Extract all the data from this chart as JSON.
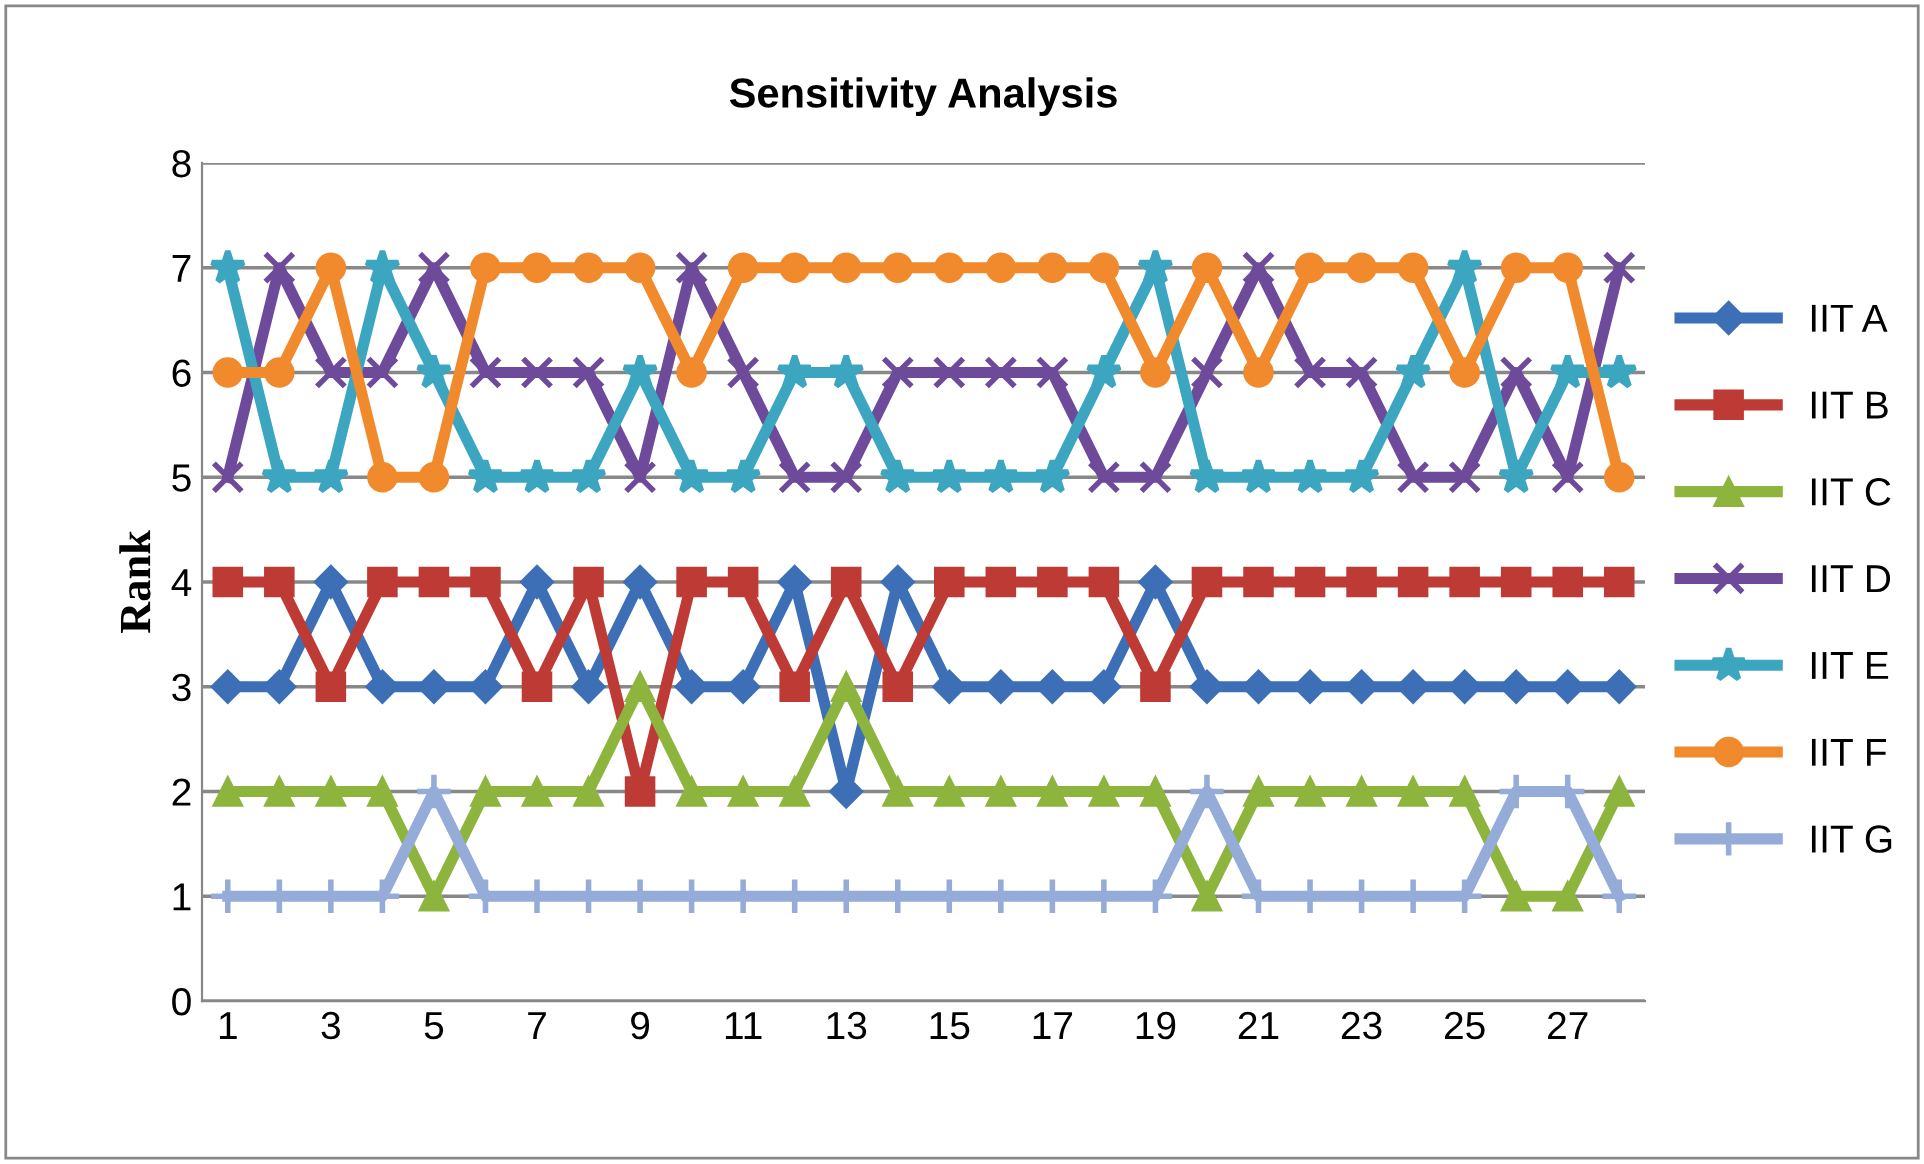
{
  "chart_data": {
    "type": "line",
    "title": "Sensitivity Analysis",
    "ylabel": "Rank",
    "categories": [
      "1",
      null,
      "3",
      null,
      "5",
      null,
      "7",
      null,
      "9",
      null,
      "11",
      null,
      "13",
      null,
      "15",
      null,
      "17",
      null,
      "19",
      null,
      "21",
      null,
      "23",
      null,
      "25",
      null,
      "27",
      null
    ],
    "ylim": [
      0,
      8
    ],
    "yticks": [
      0,
      1,
      2,
      3,
      4,
      5,
      6,
      7,
      8
    ],
    "grid": "y",
    "legend": "right",
    "series": [
      {
        "name": "IIT A",
        "color": "#3d6fb6",
        "marker": "diamond",
        "values": [
          3,
          3,
          4,
          3,
          3,
          3,
          4,
          3,
          4,
          3,
          3,
          4,
          2,
          4,
          3,
          3,
          3,
          3,
          4,
          3,
          3,
          3,
          3,
          3,
          3,
          3,
          3,
          3
        ]
      },
      {
        "name": "IIT B",
        "color": "#be3b35",
        "marker": "square",
        "values": [
          4,
          4,
          3,
          4,
          4,
          4,
          3,
          4,
          2,
          4,
          4,
          3,
          4,
          3,
          4,
          4,
          4,
          4,
          3,
          4,
          4,
          4,
          4,
          4,
          4,
          4,
          4,
          4
        ]
      },
      {
        "name": "IIT C",
        "color": "#8db43d",
        "marker": "triangle",
        "values": [
          2,
          2,
          2,
          2,
          1,
          2,
          2,
          2,
          3,
          2,
          2,
          2,
          3,
          2,
          2,
          2,
          2,
          2,
          2,
          1,
          2,
          2,
          2,
          2,
          2,
          1,
          1,
          2
        ]
      },
      {
        "name": "IIT D",
        "color": "#6e4a9b",
        "marker": "cross",
        "values": [
          5,
          7,
          6,
          6,
          7,
          6,
          6,
          6,
          5,
          7,
          6,
          5,
          5,
          6,
          6,
          6,
          6,
          5,
          5,
          6,
          7,
          6,
          6,
          5,
          5,
          6,
          5,
          7
        ]
      },
      {
        "name": "IIT E",
        "color": "#3ca6c1",
        "marker": "star",
        "values": [
          7,
          5,
          5,
          7,
          6,
          5,
          5,
          5,
          6,
          5,
          5,
          6,
          6,
          5,
          5,
          5,
          5,
          6,
          7,
          5,
          5,
          5,
          5,
          6,
          7,
          5,
          6,
          6
        ]
      },
      {
        "name": "IIT F",
        "color": "#f08a2d",
        "marker": "circle",
        "values": [
          6,
          6,
          7,
          5,
          5,
          7,
          7,
          7,
          7,
          6,
          7,
          7,
          7,
          7,
          7,
          7,
          7,
          7,
          6,
          7,
          6,
          7,
          7,
          7,
          6,
          7,
          7,
          5
        ]
      },
      {
        "name": "IIT G",
        "color": "#94acd7",
        "marker": "plus",
        "values": [
          1,
          1,
          1,
          1,
          2,
          1,
          1,
          1,
          1,
          1,
          1,
          1,
          1,
          1,
          1,
          1,
          1,
          1,
          1,
          2,
          1,
          1,
          1,
          1,
          1,
          2,
          2,
          1
        ]
      }
    ]
  }
}
